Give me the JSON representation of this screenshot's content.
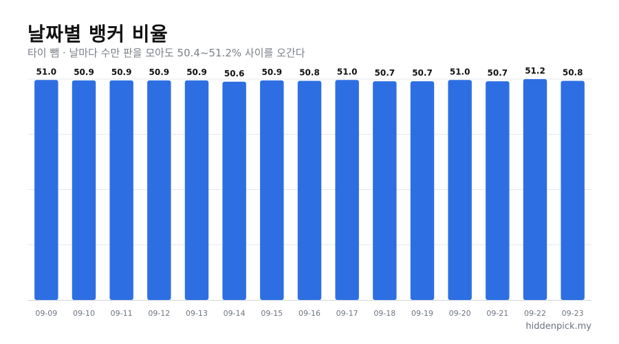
{
  "title": "날짜별 뱅커 비율",
  "subtitle": "타이 뺌 · 날마다 수만 판을 모아도 50.4~51.2% 사이를 오간다",
  "watermark": "hiddenpick.my",
  "colors": {
    "bar": "#2d6fe3",
    "grid": "#e5e7eb",
    "axis": "#d1d5db",
    "label": "#111111",
    "tick": "#6b7280"
  },
  "chart_data": {
    "type": "bar",
    "categories": [
      "09-09",
      "09-10",
      "09-11",
      "09-12",
      "09-13",
      "09-14",
      "09-15",
      "09-16",
      "09-17",
      "09-18",
      "09-19",
      "09-20",
      "09-21",
      "09-22",
      "09-23"
    ],
    "values": [
      51.0,
      50.9,
      50.9,
      50.9,
      50.9,
      50.6,
      50.9,
      50.8,
      51.0,
      50.7,
      50.7,
      51.0,
      50.7,
      51.2,
      50.8
    ],
    "value_labels": [
      "51.0",
      "50.9",
      "50.9",
      "50.9",
      "50.9",
      "50.6",
      "50.9",
      "50.8",
      "51.0",
      "50.7",
      "50.7",
      "51.0",
      "50.7",
      "51.2",
      "50.8"
    ],
    "ylim": [
      0,
      51.2
    ],
    "grid": true,
    "xlabel": "",
    "ylabel": ""
  }
}
